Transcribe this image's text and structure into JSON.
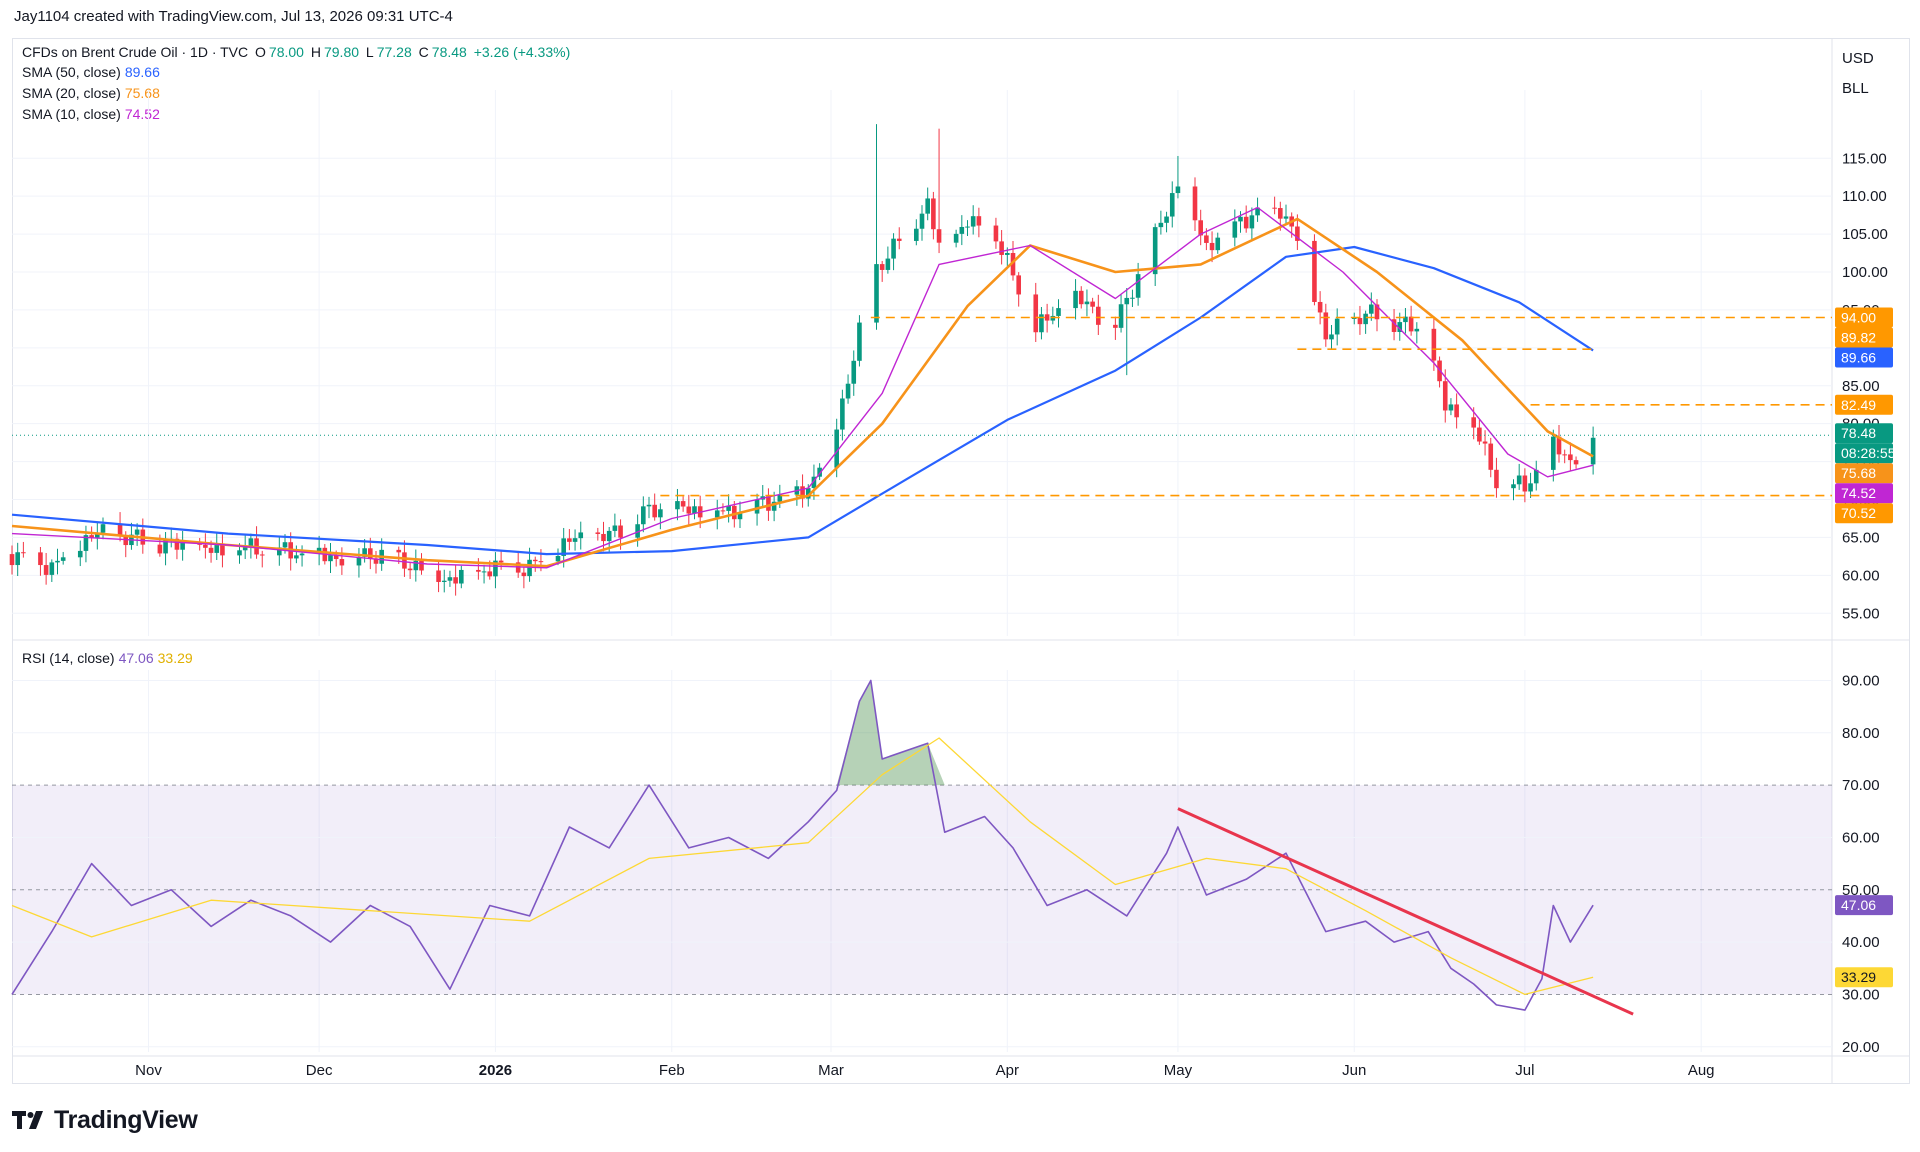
{
  "header": {
    "attribution": "Jay1104 created with TradingView.com, Jul 13, 2026 09:31 UTC-4"
  },
  "brand": {
    "name": "TradingView"
  },
  "units": {
    "currency": "USD",
    "unit": "BLL"
  },
  "legend": {
    "symbol": "CFDs on Brent Crude Oil · 1D · TVC",
    "open_label": "O",
    "open": "78.00",
    "high_label": "H",
    "high": "79.80",
    "low_label": "L",
    "low": "77.28",
    "close_label": "C",
    "close": "78.48",
    "change": "+3.26 (+4.33%)",
    "sma50_label": "SMA (50, close)",
    "sma50_value": "89.66",
    "sma20_label": "SMA (20, close)",
    "sma20_value": "75.68",
    "sma10_label": "SMA (10, close)",
    "sma10_value": "74.52",
    "rsi_label": "RSI (14, close)",
    "rsi_value": "47.06",
    "rsi_ma_value": "33.29"
  },
  "colors": {
    "up": "#089981",
    "down": "#f23645",
    "sma50": "#2962ff",
    "sma20": "#f7931a",
    "sma10": "#c026d3",
    "rsi": "#7e57c2",
    "rsi_ma": "#fdd835",
    "level": "#ff9800",
    "trendline": "#e8354d"
  },
  "chart_data": [
    {
      "type": "candlestick",
      "title": "CFDs on Brent Crude Oil · 1D · TVC",
      "x_tick_labels": [
        "Nov",
        "Dec",
        "2026",
        "Feb",
        "Mar",
        "Apr",
        "May",
        "Jun",
        "Jul",
        "Aug"
      ],
      "y_tick_labels": [
        "55.00",
        "60.00",
        "65.00",
        "70.00",
        "75.00",
        "80.00",
        "85.00",
        "90.00",
        "95.00",
        "100.00",
        "105.00",
        "110.00",
        "115.00"
      ],
      "y_ticks": [
        55,
        60,
        65,
        70,
        75,
        80,
        85,
        90,
        95,
        100,
        105,
        110,
        115
      ],
      "ylim": [
        52,
        124
      ],
      "x_range": [
        "2025-10-08",
        "2026-08-24"
      ],
      "last_bar_date": "2026-07-13",
      "close_series": [
        [
          "2025-10-08",
          62.8
        ],
        [
          "2025-10-15",
          61.2
        ],
        [
          "2025-10-22",
          65.5
        ],
        [
          "2025-10-29",
          64.9
        ],
        [
          "2025-11-05",
          63.9
        ],
        [
          "2025-11-12",
          63.1
        ],
        [
          "2025-11-19",
          63.6
        ],
        [
          "2025-11-26",
          63.0
        ],
        [
          "2025-12-03",
          62.4
        ],
        [
          "2025-12-10",
          62.9
        ],
        [
          "2025-12-17",
          61.6
        ],
        [
          "2025-12-24",
          59.5
        ],
        [
          "2025-12-31",
          60.9
        ],
        [
          "2026-01-07",
          61.0
        ],
        [
          "2026-01-14",
          64.5
        ],
        [
          "2026-01-21",
          65.1
        ],
        [
          "2026-01-28",
          68.5
        ],
        [
          "2026-02-04",
          68.6
        ],
        [
          "2026-02-11",
          68.4
        ],
        [
          "2026-02-18",
          69.8
        ],
        [
          "2026-02-25",
          71.5
        ],
        [
          "2026-03-02",
          80.0
        ],
        [
          "2026-03-06",
          92.0
        ],
        [
          "2026-03-09",
          100.5
        ],
        [
          "2026-03-13",
          104.2
        ],
        [
          "2026-03-18",
          109.0
        ],
        [
          "2026-03-20",
          103.0
        ],
        [
          "2026-03-25",
          106.5
        ],
        [
          "2026-03-30",
          104.5
        ],
        [
          "2026-04-06",
          92.5
        ],
        [
          "2026-04-13",
          96.5
        ],
        [
          "2026-04-20",
          93.0
        ],
        [
          "2026-04-27",
          104.5
        ],
        [
          "2026-05-01",
          112.0
        ],
        [
          "2026-05-06",
          103.5
        ],
        [
          "2026-05-12",
          107.0
        ],
        [
          "2026-05-19",
          108.5
        ],
        [
          "2026-05-23",
          103.0
        ],
        [
          "2026-05-27",
          91.5
        ],
        [
          "2026-06-03",
          94.5
        ],
        [
          "2026-06-10",
          93.0
        ],
        [
          "2026-06-14",
          91.0
        ],
        [
          "2026-06-17",
          82.0
        ],
        [
          "2026-06-22",
          79.5
        ],
        [
          "2026-06-26",
          72.5
        ],
        [
          "2026-07-01",
          71.5
        ],
        [
          "2026-07-06",
          77.0
        ],
        [
          "2026-07-09",
          75.2
        ],
        [
          "2026-07-13",
          78.48
        ]
      ],
      "extreme_highs": [
        [
          "2026-03-09",
          119.5
        ],
        [
          "2026-03-20",
          118.9
        ],
        [
          "2026-05-01",
          115.3
        ]
      ],
      "extreme_lows": [
        [
          "2026-04-22",
          86.4
        ],
        [
          "2026-07-02",
          70.2
        ]
      ],
      "series": [
        {
          "name": "SMA (50, close)",
          "points": [
            [
              "2025-10-08",
              68.0
            ],
            [
              "2025-11-15",
              65.5
            ],
            [
              "2025-12-20",
              64.0
            ],
            [
              "2026-01-10",
              62.8
            ],
            [
              "2026-02-01",
              63.2
            ],
            [
              "2026-02-25",
              65.0
            ],
            [
              "2026-03-15",
              73.0
            ],
            [
              "2026-04-01",
              80.5
            ],
            [
              "2026-04-20",
              87.0
            ],
            [
              "2026-05-05",
              94.0
            ],
            [
              "2026-05-20",
              102.0
            ],
            [
              "2026-06-01",
              103.3
            ],
            [
              "2026-06-15",
              100.5
            ],
            [
              "2026-06-30",
              96.0
            ],
            [
              "2026-07-13",
              89.66
            ]
          ]
        },
        {
          "name": "SMA (20, close)",
          "points": [
            [
              "2025-10-08",
              66.5
            ],
            [
              "2025-11-15",
              64.0
            ],
            [
              "2025-12-20",
              62.0
            ],
            [
              "2026-01-10",
              61.2
            ],
            [
              "2026-02-01",
              66.0
            ],
            [
              "2026-02-25",
              70.5
            ],
            [
              "2026-03-10",
              80.0
            ],
            [
              "2026-03-25",
              95.5
            ],
            [
              "2026-04-05",
              103.5
            ],
            [
              "2026-04-20",
              100.0
            ],
            [
              "2026-05-05",
              101.0
            ],
            [
              "2026-05-22",
              107.0
            ],
            [
              "2026-06-05",
              100.0
            ],
            [
              "2026-06-20",
              91.0
            ],
            [
              "2026-07-05",
              79.0
            ],
            [
              "2026-07-13",
              75.68
            ]
          ]
        },
        {
          "name": "SMA (10, close)",
          "points": [
            [
              "2025-10-08",
              65.5
            ],
            [
              "2025-11-15",
              64.0
            ],
            [
              "2025-12-20",
              61.5
            ],
            [
              "2026-01-10",
              61.0
            ],
            [
              "2026-02-01",
              67.5
            ],
            [
              "2026-02-25",
              71.5
            ],
            [
              "2026-03-10",
              84.0
            ],
            [
              "2026-03-20",
              101.0
            ],
            [
              "2026-04-05",
              103.5
            ],
            [
              "2026-04-20",
              96.5
            ],
            [
              "2026-05-05",
              105.0
            ],
            [
              "2026-05-15",
              108.5
            ],
            [
              "2026-05-30",
              100.0
            ],
            [
              "2026-06-15",
              88.0
            ],
            [
              "2026-06-28",
              76.0
            ],
            [
              "2026-07-05",
              73.0
            ],
            [
              "2026-07-13",
              74.52
            ]
          ]
        }
      ],
      "horizontal_levels": [
        94.0,
        89.82,
        82.49,
        70.52
      ],
      "price_labels": [
        {
          "text": "94.00",
          "kind": "level"
        },
        {
          "text": "89.82",
          "kind": "level"
        },
        {
          "text": "89.66",
          "kind": "sma50"
        },
        {
          "text": "82.49",
          "kind": "level"
        },
        {
          "text": "78.48",
          "kind": "last"
        },
        {
          "text": "08:28:55",
          "kind": "countdown"
        },
        {
          "text": "75.68",
          "kind": "sma20"
        },
        {
          "text": "74.52",
          "kind": "sma10"
        },
        {
          "text": "70.52",
          "kind": "level"
        }
      ],
      "grid": true
    },
    {
      "type": "line",
      "title": "RSI (14, close)",
      "x_range": [
        "2025-10-08",
        "2026-08-24"
      ],
      "y_tick_labels": [
        "20.00",
        "30.00",
        "40.00",
        "50.00",
        "60.00",
        "70.00",
        "80.00",
        "90.00"
      ],
      "y_ticks": [
        20,
        30,
        40,
        50,
        60,
        70,
        80,
        90
      ],
      "ylim": [
        19,
        92
      ],
      "band": [
        30,
        70
      ],
      "series": [
        {
          "name": "RSI (14, close)",
          "points": [
            [
              "2025-10-08",
              30
            ],
            [
              "2025-10-15",
              42
            ],
            [
              "2025-10-22",
              55
            ],
            [
              "2025-10-29",
              47
            ],
            [
              "2025-11-05",
              50
            ],
            [
              "2025-11-12",
              43
            ],
            [
              "2025-11-19",
              48
            ],
            [
              "2025-11-26",
              45
            ],
            [
              "2025-12-03",
              40
            ],
            [
              "2025-12-10",
              47
            ],
            [
              "2025-12-17",
              43
            ],
            [
              "2025-12-24",
              31
            ],
            [
              "2025-12-31",
              47
            ],
            [
              "2026-01-07",
              45
            ],
            [
              "2026-01-14",
              62
            ],
            [
              "2026-01-21",
              58
            ],
            [
              "2026-01-28",
              70
            ],
            [
              "2026-02-04",
              58
            ],
            [
              "2026-02-11",
              60
            ],
            [
              "2026-02-18",
              56
            ],
            [
              "2026-02-25",
              63
            ],
            [
              "2026-03-02",
              69
            ],
            [
              "2026-03-06",
              86
            ],
            [
              "2026-03-08",
              90
            ],
            [
              "2026-03-10",
              75
            ],
            [
              "2026-03-18",
              78
            ],
            [
              "2026-03-21",
              61
            ],
            [
              "2026-03-28",
              64
            ],
            [
              "2026-04-02",
              58
            ],
            [
              "2026-04-08",
              47
            ],
            [
              "2026-04-15",
              50
            ],
            [
              "2026-04-22",
              45
            ],
            [
              "2026-04-29",
              57
            ],
            [
              "2026-05-01",
              62
            ],
            [
              "2026-05-06",
              49
            ],
            [
              "2026-05-13",
              52
            ],
            [
              "2026-05-20",
              57
            ],
            [
              "2026-05-27",
              42
            ],
            [
              "2026-06-03",
              44
            ],
            [
              "2026-06-08",
              40
            ],
            [
              "2026-06-14",
              42
            ],
            [
              "2026-06-18",
              35
            ],
            [
              "2026-06-22",
              32
            ],
            [
              "2026-06-26",
              28
            ],
            [
              "2026-07-01",
              27
            ],
            [
              "2026-07-04",
              33
            ],
            [
              "2026-07-06",
              47
            ],
            [
              "2026-07-09",
              40
            ],
            [
              "2026-07-13",
              47.06
            ]
          ]
        },
        {
          "name": "RSI-based MA",
          "points": [
            [
              "2025-10-08",
              47
            ],
            [
              "2025-10-22",
              41
            ],
            [
              "2025-11-12",
              48
            ],
            [
              "2025-12-10",
              46
            ],
            [
              "2026-01-07",
              44
            ],
            [
              "2026-01-28",
              56
            ],
            [
              "2026-02-25",
              59
            ],
            [
              "2026-03-10",
              72
            ],
            [
              "2026-03-20",
              79
            ],
            [
              "2026-04-05",
              63
            ],
            [
              "2026-04-20",
              51
            ],
            [
              "2026-05-06",
              56
            ],
            [
              "2026-05-20",
              54
            ],
            [
              "2026-06-03",
              46
            ],
            [
              "2026-06-18",
              37
            ],
            [
              "2026-07-01",
              30
            ],
            [
              "2026-07-13",
              33.29
            ]
          ]
        }
      ],
      "trendline": [
        [
          "2026-05-01",
          65.5
        ],
        [
          "2026-07-13",
          27.0
        ]
      ],
      "price_labels": [
        {
          "text": "47.06",
          "kind": "rsi"
        },
        {
          "text": "33.29",
          "kind": "rsi_ma"
        }
      ],
      "grid": true
    }
  ]
}
